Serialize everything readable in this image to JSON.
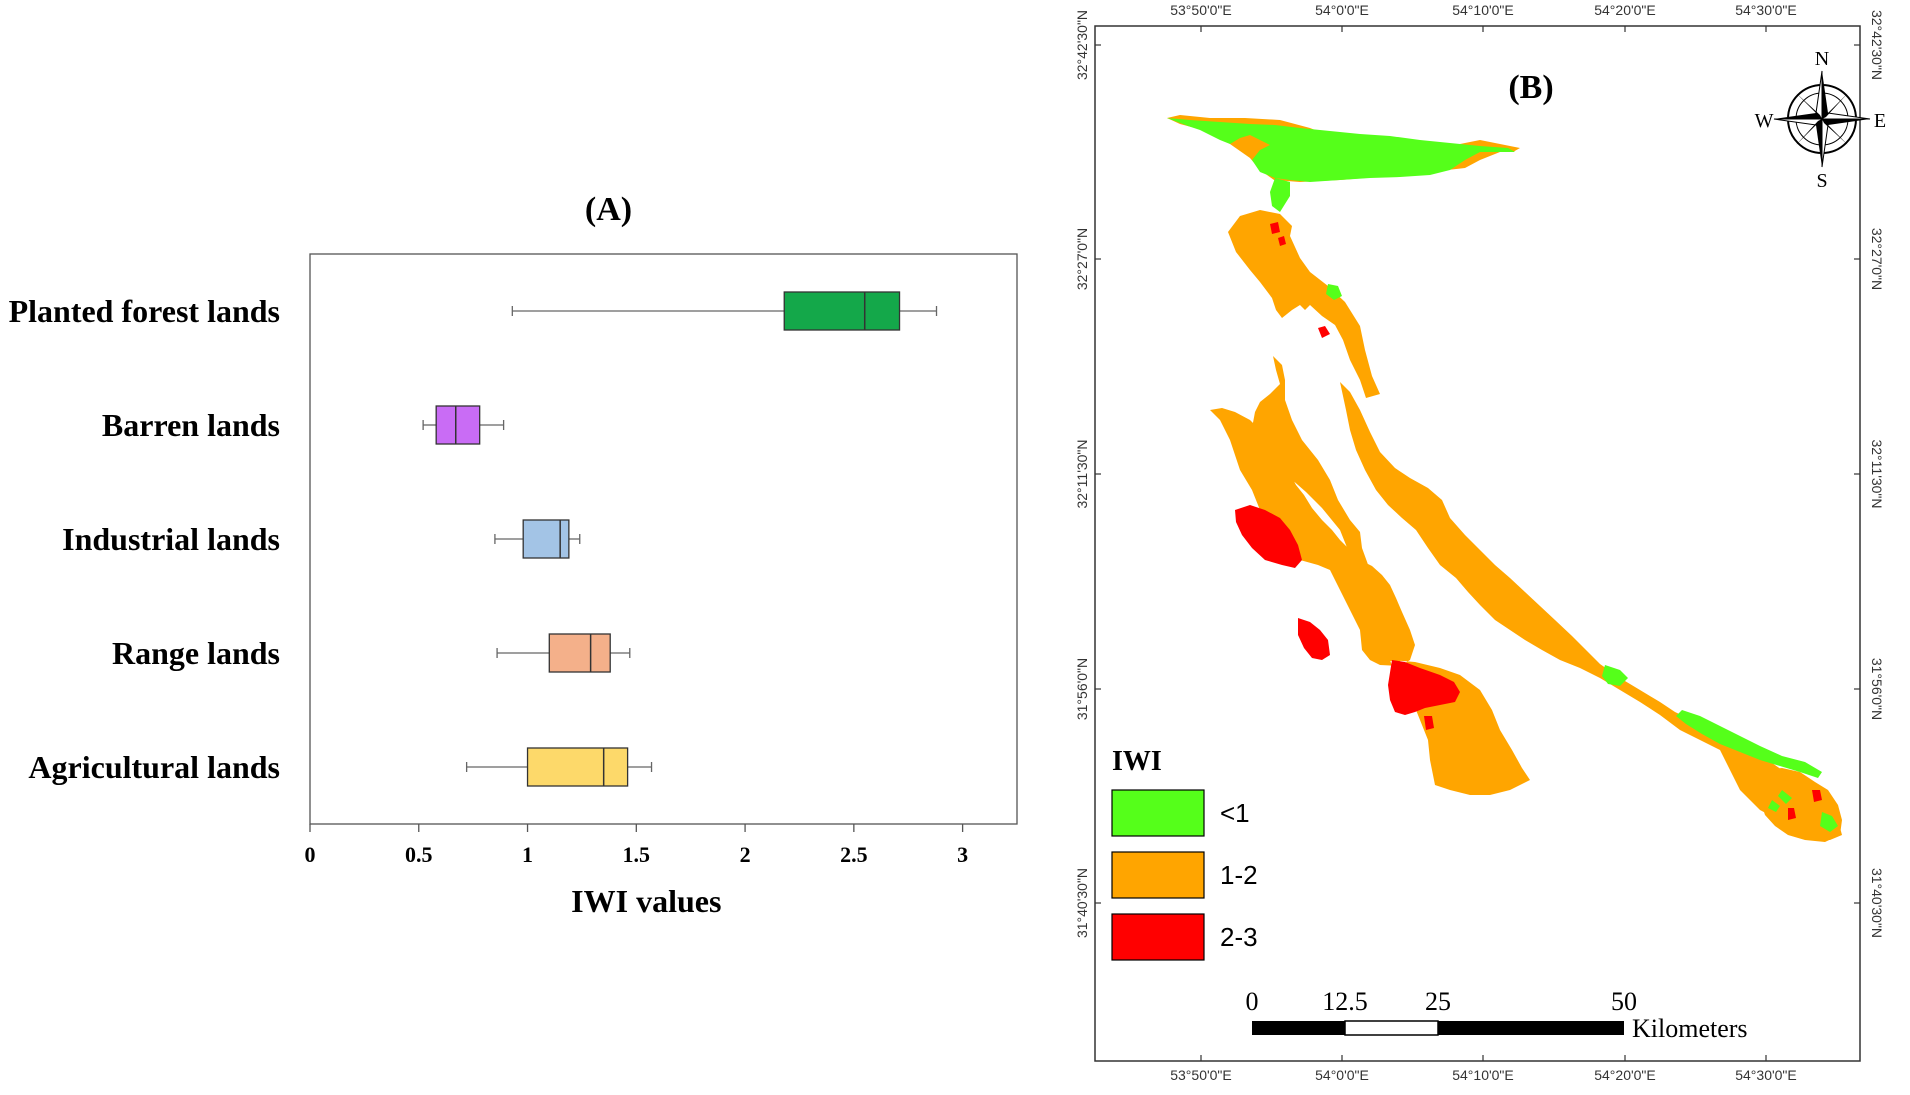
{
  "chart_data": [
    {
      "panel": "(A)",
      "type": "boxplot",
      "title": "(A)",
      "xlabel": "IWI values",
      "xlim": [
        0,
        3.25
      ],
      "xticks": [
        0,
        0.5,
        1,
        1.5,
        2,
        2.5,
        3
      ],
      "xtick_labels": [
        "0",
        "0.5",
        "1",
        "1.5",
        "2",
        "2.5",
        "3"
      ],
      "grid": false,
      "categories": [
        "Planted forest lands",
        "Barren lands",
        "Industrial lands",
        "Range lands",
        "Agricultural lands"
      ],
      "boxes": [
        {
          "category": "Planted forest lands",
          "min": 0.93,
          "q1": 2.18,
          "median": 2.55,
          "q3": 2.71,
          "max": 2.88,
          "color": "#14a84a"
        },
        {
          "category": "Barren lands",
          "min": 0.52,
          "q1": 0.58,
          "median": 0.67,
          "q3": 0.78,
          "max": 0.89,
          "color": "#c96cf5"
        },
        {
          "category": "Industrial lands",
          "min": 0.85,
          "q1": 0.98,
          "median": 1.15,
          "q3": 1.19,
          "max": 1.24,
          "color": "#a3c4e6"
        },
        {
          "category": "Range lands",
          "min": 0.86,
          "q1": 1.1,
          "median": 1.29,
          "q3": 1.38,
          "max": 1.47,
          "color": "#f4b08a"
        },
        {
          "category": "Agricultural lands",
          "min": 0.72,
          "q1": 1.0,
          "median": 1.35,
          "q3": 1.46,
          "max": 1.57,
          "color": "#fdd96a"
        }
      ]
    }
  ],
  "map": {
    "panel_label": "(B)",
    "top_lon_labels": [
      "53°50'0\"E",
      "54°0'0\"E",
      "54°10'0\"E",
      "54°20'0\"E",
      "54°30'0\"E"
    ],
    "bottom_lon_labels": [
      "53°50'0\"E",
      "54°0'0\"E",
      "54°10'0\"E",
      "54°20'0\"E",
      "54°30'0\"E"
    ],
    "lat_labels": [
      "32°42'30\"N",
      "32°27'0\"N",
      "32°11'30\"N",
      "31°56'0\"N",
      "31°40'30\"N"
    ],
    "north_arrow": {
      "n": "N",
      "s": "S",
      "e": "E",
      "w": "W"
    },
    "legend": {
      "title": "IWI",
      "items": [
        {
          "label": "<1",
          "color": "#55ff1a"
        },
        {
          "label": "1-2",
          "color": "#ffa500"
        },
        {
          "label": "2-3",
          "color": "#ff0000"
        }
      ]
    },
    "scale_bar": {
      "labels": [
        "0",
        "12.5",
        "25",
        "50"
      ],
      "unit": "Kilometers"
    }
  }
}
